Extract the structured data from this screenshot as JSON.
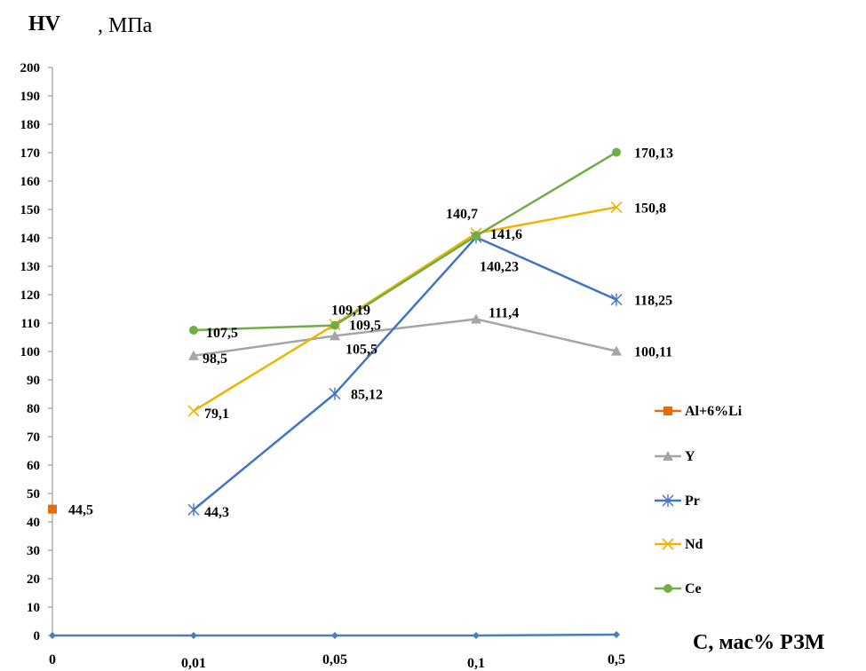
{
  "chart_data": {
    "type": "line",
    "title": "",
    "ylabel_main": "HV",
    "ylabel_unit": ", МПа",
    "xlabel": "C, мас% РЗМ",
    "categories": [
      "0",
      "0,01",
      "0,05",
      "0,1",
      "0,5"
    ],
    "ylim": [
      0,
      200
    ],
    "ytick_step": 10,
    "grid": false,
    "legend_position": "right",
    "series": [
      {
        "name": "Al+6%Li",
        "color": "#E46C0A",
        "marker": "square",
        "values": [
          44.5,
          null,
          null,
          null,
          null
        ],
        "labels": [
          "44,5",
          null,
          null,
          null,
          null
        ]
      },
      {
        "name": "Y",
        "color": "#A5A5A5",
        "marker": "triangle",
        "values": [
          null,
          98.5,
          105.5,
          111.4,
          100.11
        ],
        "labels": [
          null,
          "98,5",
          "105,5",
          "111,4",
          "100,11"
        ]
      },
      {
        "name": "Pr",
        "color": "#4472C4",
        "marker": "asterisk",
        "values": [
          null,
          44.3,
          85.12,
          140.23,
          118.25
        ],
        "labels": [
          null,
          "44,3",
          "85,12",
          "140,23",
          "118,25"
        ]
      },
      {
        "name": "Nd",
        "color": "#F0B400",
        "marker": "x",
        "values": [
          null,
          79.1,
          109.5,
          141.6,
          150.8
        ],
        "labels": [
          null,
          "79,1",
          "109,5",
          "141,6",
          "150,8"
        ]
      },
      {
        "name": "Ce",
        "color": "#70AD47",
        "marker": "circle",
        "values": [
          null,
          107.5,
          109.19,
          140.7,
          170.13
        ],
        "labels": [
          null,
          "107,5",
          "109,19",
          "140,7",
          "170,13"
        ]
      }
    ],
    "baseline": {
      "color": "#4A7EBB",
      "marker": "diamond",
      "values": [
        0,
        0,
        0,
        0,
        0.3
      ]
    }
  }
}
